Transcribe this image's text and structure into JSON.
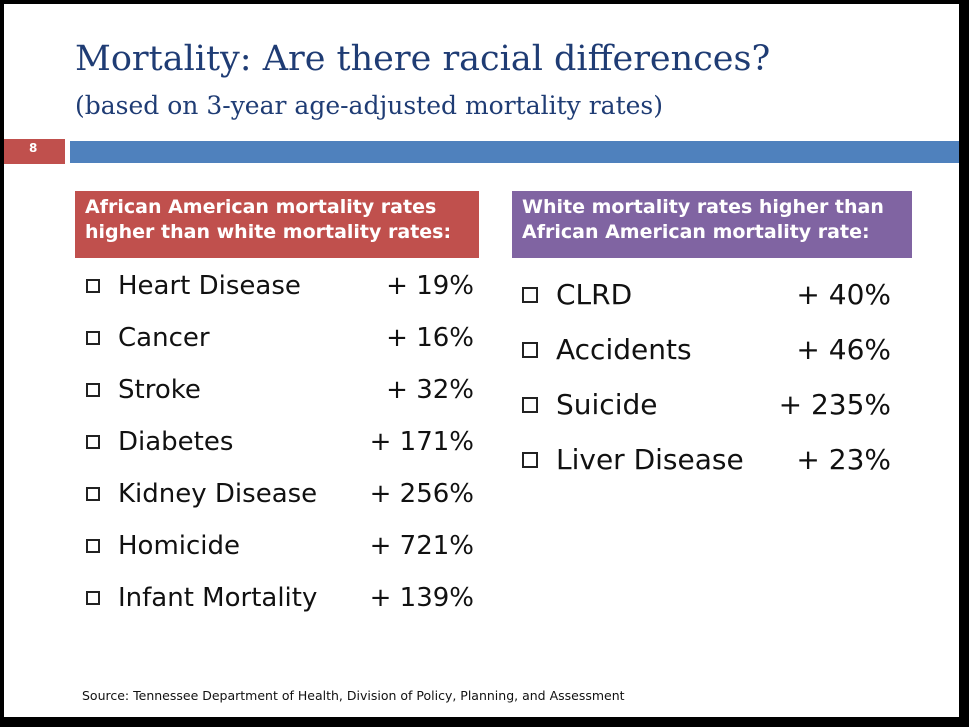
{
  "slide": {
    "title": "Mortality: Are there racial differences?",
    "subtitle": "(based on 3-year age-adjusted mortality rates)",
    "page_number": "8"
  },
  "left_panel": {
    "header_line1": "African American mortality rates",
    "header_line2": "higher than white mortality rates:",
    "items": [
      {
        "label": "Heart Disease",
        "value": "+ 19%"
      },
      {
        "label": "Cancer",
        "value": "+ 16%"
      },
      {
        "label": "Stroke",
        "value": "+ 32%"
      },
      {
        "label": "Diabetes",
        "value": "+ 171%"
      },
      {
        "label": "Kidney Disease",
        "value": "+ 256%"
      },
      {
        "label": "Homicide",
        "value": "+ 721%"
      },
      {
        "label": "Infant Mortality",
        "value": "+ 139%"
      }
    ]
  },
  "right_panel": {
    "header_line1": "White mortality rates higher than",
    "header_line2": "African American mortality rate:",
    "items": [
      {
        "label": "CLRD",
        "value": "+ 40%"
      },
      {
        "label": "Accidents",
        "value": "+ 46%"
      },
      {
        "label": "Suicide",
        "value": "+ 235%"
      },
      {
        "label": "Liver Disease",
        "value": "+ 23%"
      }
    ]
  },
  "footer": {
    "source": "Source: Tennessee Department of Health, Division of Policy, Planning, and Assessment"
  },
  "colors": {
    "title": "#1f3c74",
    "accent_red": "#c0504d",
    "accent_blue": "#4f81bd",
    "accent_purple": "#8064a2"
  }
}
